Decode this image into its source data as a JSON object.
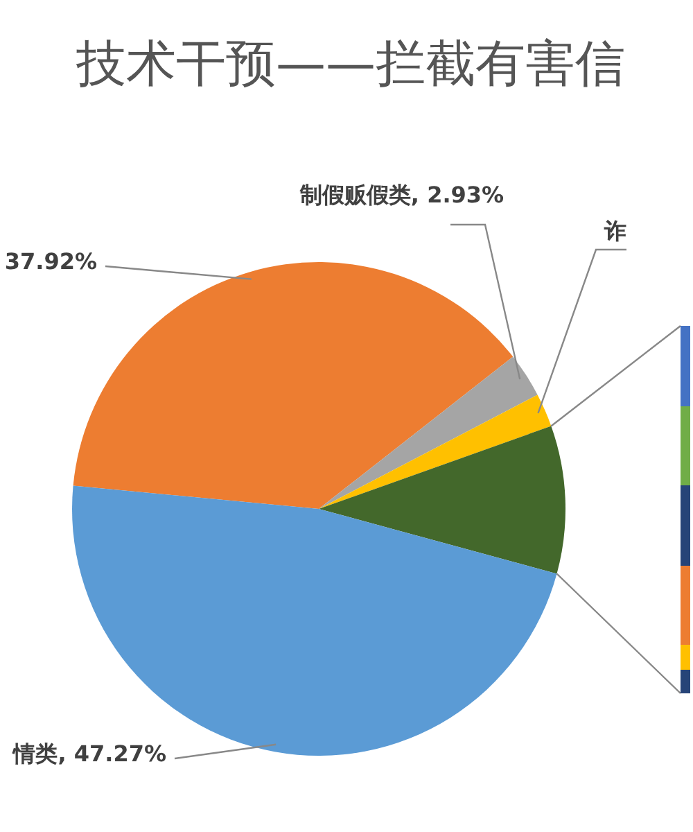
{
  "chart_data": {
    "type": "pie",
    "title": "技术干预——拦截有害信",
    "categories": [
      null,
      "制假贩假类",
      "诈",
      null,
      "情类"
    ],
    "values": [
      37.92,
      2.93,
      2.2,
      9.68,
      47.27
    ],
    "value_labels": [
      "37.92%",
      "2.93%",
      null,
      null,
      "47.27%"
    ],
    "colors": [
      "#ed7d31",
      "#a5a5a5",
      "#ffc000",
      "#43682b",
      "#5b9bd5"
    ],
    "legend": false
  }
}
